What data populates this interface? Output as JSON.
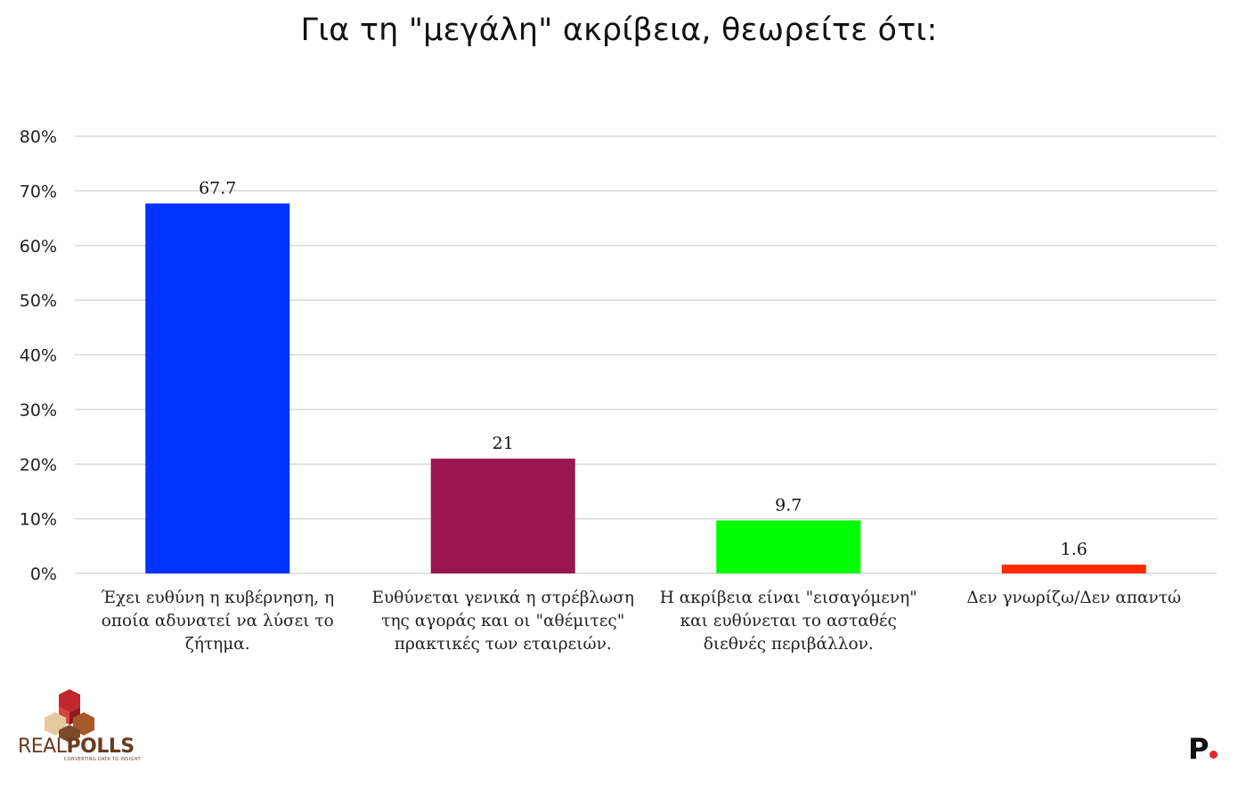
{
  "chart_data": {
    "type": "bar",
    "title": "Για τη \"μεγάλη\" ακρίβεια, θεωρείτε ότι:",
    "categories": [
      "Έχει ευθύνη  η κυβέρνηση,  η οποία αδυνατεί να λύσει το ζήτημα.",
      "Ευθύνεται γενικά η στρέβλωση της αγοράς και οι \"αθέμιτες\" πρακτικές των εταιρειών.",
      "Η ακρίβεια είναι \"εισαγόμενη\"  και ευθύνεται  το ασταθές  διεθνές περιβάλλον.",
      "Δεν γνωρίζω/Δεν απαντώ"
    ],
    "values": [
      67.7,
      21,
      9.7,
      1.6
    ],
    "value_labels": [
      "67.7",
      "21",
      "9.7",
      "1.6"
    ],
    "colors": [
      "#0033ff",
      "#99174e",
      "#00ff00",
      "#ff2a00"
    ],
    "ylim": [
      0,
      80
    ],
    "yticks": [
      "0%",
      "10%",
      "20%",
      "30%",
      "40%",
      "50%",
      "60%",
      "70%",
      "80%"
    ],
    "grid": true,
    "xlabel": "",
    "ylabel": ""
  },
  "branding": {
    "left_logo_text": "REAL",
    "left_logo_text_bold": "POLLS",
    "left_logo_tagline": "CONVERTING DATA TO INSIGHT",
    "right_logo_text": "P"
  }
}
